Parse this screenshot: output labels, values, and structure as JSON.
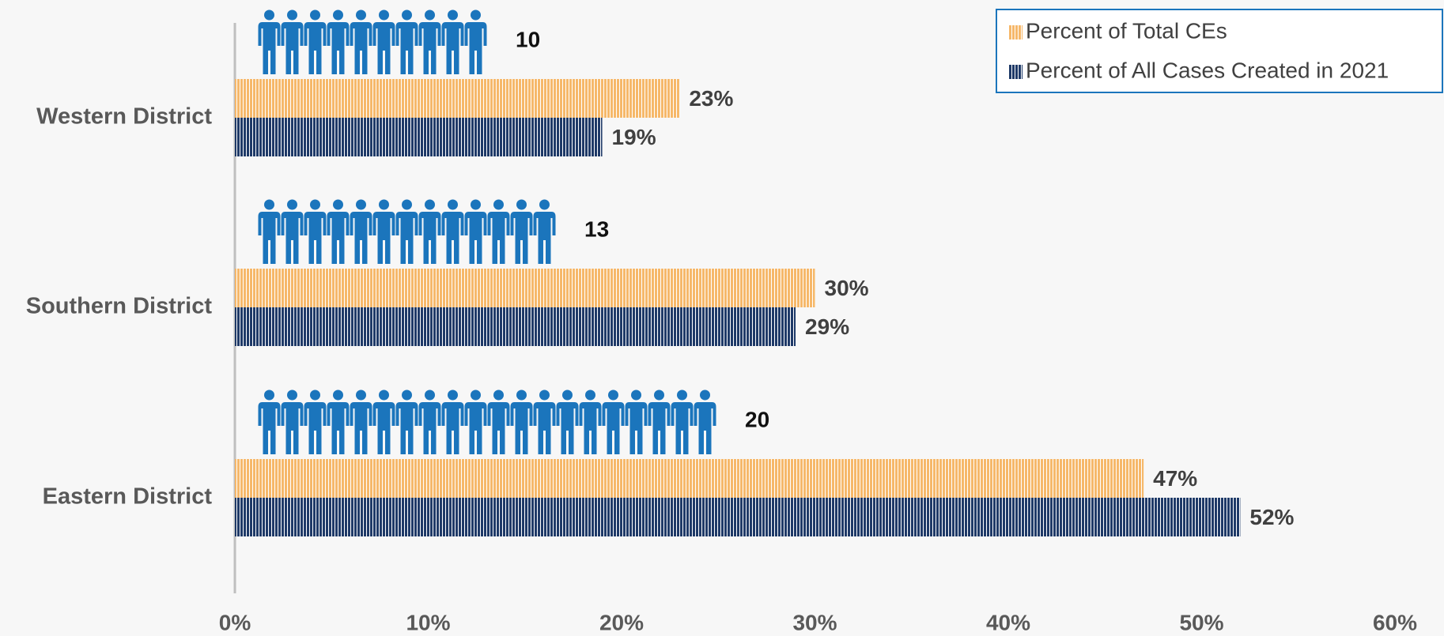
{
  "chart_data": {
    "type": "hbar",
    "categories": [
      "Western District",
      "Southern District",
      "Eastern District"
    ],
    "series": [
      {
        "name": "Percent of Total CEs",
        "color": "#f6b86a",
        "values": [
          23,
          30,
          47
        ],
        "value_labels": [
          "23%",
          "30%",
          "47%"
        ]
      },
      {
        "name": "Percent of All Cases Created in 2021",
        "color": "#1f3a68",
        "values": [
          19,
          29,
          52
        ],
        "value_labels": [
          "19%",
          "29%",
          "52%"
        ]
      }
    ],
    "counts": [
      10,
      13,
      20
    ],
    "icon_color": "#1b75bc",
    "xlim": [
      0,
      60
    ],
    "xticks": [
      {
        "value": 0,
        "label": "0%"
      },
      {
        "value": 10,
        "label": "10%"
      },
      {
        "value": 20,
        "label": "20%"
      },
      {
        "value": 30,
        "label": "30%"
      },
      {
        "value": 40,
        "label": "40%"
      },
      {
        "value": 50,
        "label": "50%"
      },
      {
        "value": 60,
        "label": "60%"
      }
    ],
    "legend": "top-right",
    "grid": false
  }
}
